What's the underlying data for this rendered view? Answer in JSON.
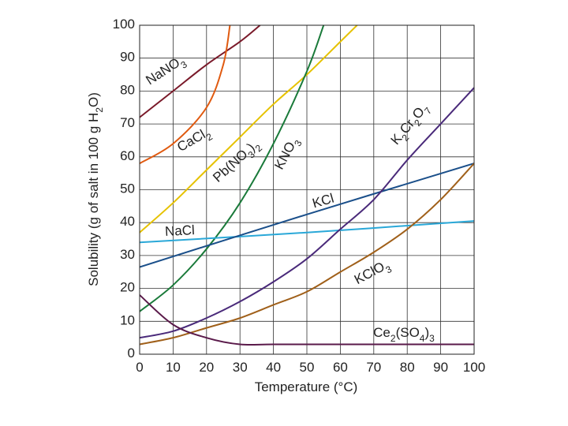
{
  "chart_data": {
    "type": "line",
    "x_label": "Temperature (°C)",
    "y_label": "Solubility (g of salt in 100 g H2O)",
    "xlim": [
      0,
      100
    ],
    "ylim": [
      0,
      100
    ],
    "xticks": [
      0,
      10,
      20,
      30,
      40,
      50,
      60,
      70,
      80,
      90,
      100
    ],
    "yticks": [
      0,
      10,
      20,
      30,
      40,
      50,
      60,
      70,
      80,
      90,
      100
    ],
    "grid": true,
    "series": [
      {
        "name": "NaNO3",
        "color": "#7a1a2a",
        "x": [
          0,
          10,
          20,
          30,
          36
        ],
        "values": [
          72,
          80,
          88,
          95,
          100
        ]
      },
      {
        "name": "CaCl2",
        "color": "#e05a10",
        "x": [
          0,
          10,
          20,
          25,
          27
        ],
        "values": [
          58,
          64,
          75,
          88,
          100
        ]
      },
      {
        "name": "Pb(NO3)2",
        "color": "#e6c200",
        "x": [
          0,
          10,
          20,
          30,
          40,
          50,
          60,
          65
        ],
        "values": [
          37,
          46,
          56,
          66,
          76,
          85,
          95,
          100
        ]
      },
      {
        "name": "KNO3",
        "color": "#1a7a3a",
        "x": [
          0,
          10,
          20,
          30,
          40,
          50,
          55
        ],
        "values": [
          13,
          21,
          32,
          46,
          64,
          86,
          100
        ]
      },
      {
        "name": "NaCl",
        "color": "#2aa8d8",
        "x": [
          0,
          50,
          100
        ],
        "values": [
          34,
          37,
          40.5
        ]
      },
      {
        "name": "KCl",
        "color": "#1a4f8a",
        "x": [
          0,
          50,
          100
        ],
        "values": [
          26.5,
          42.5,
          58
        ]
      },
      {
        "name": "K2Cr2O7",
        "color": "#4a2a7a",
        "x": [
          0,
          10,
          20,
          30,
          40,
          50,
          60,
          70,
          80,
          90,
          100
        ],
        "values": [
          5,
          7,
          11,
          16,
          22,
          29,
          38,
          47,
          59,
          70,
          81
        ]
      },
      {
        "name": "KClO3",
        "color": "#a0601a",
        "x": [
          0,
          10,
          20,
          30,
          40,
          50,
          60,
          70,
          80,
          90,
          100
        ],
        "values": [
          3,
          5,
          8,
          11,
          15,
          19,
          25,
          31,
          38,
          47,
          58
        ]
      },
      {
        "name": "Ce2(SO4)3",
        "color": "#5a1a4a",
        "x": [
          0,
          10,
          20,
          30,
          40,
          60,
          80,
          100
        ],
        "values": [
          18,
          9,
          5,
          3,
          3,
          3,
          3,
          3
        ]
      }
    ]
  }
}
